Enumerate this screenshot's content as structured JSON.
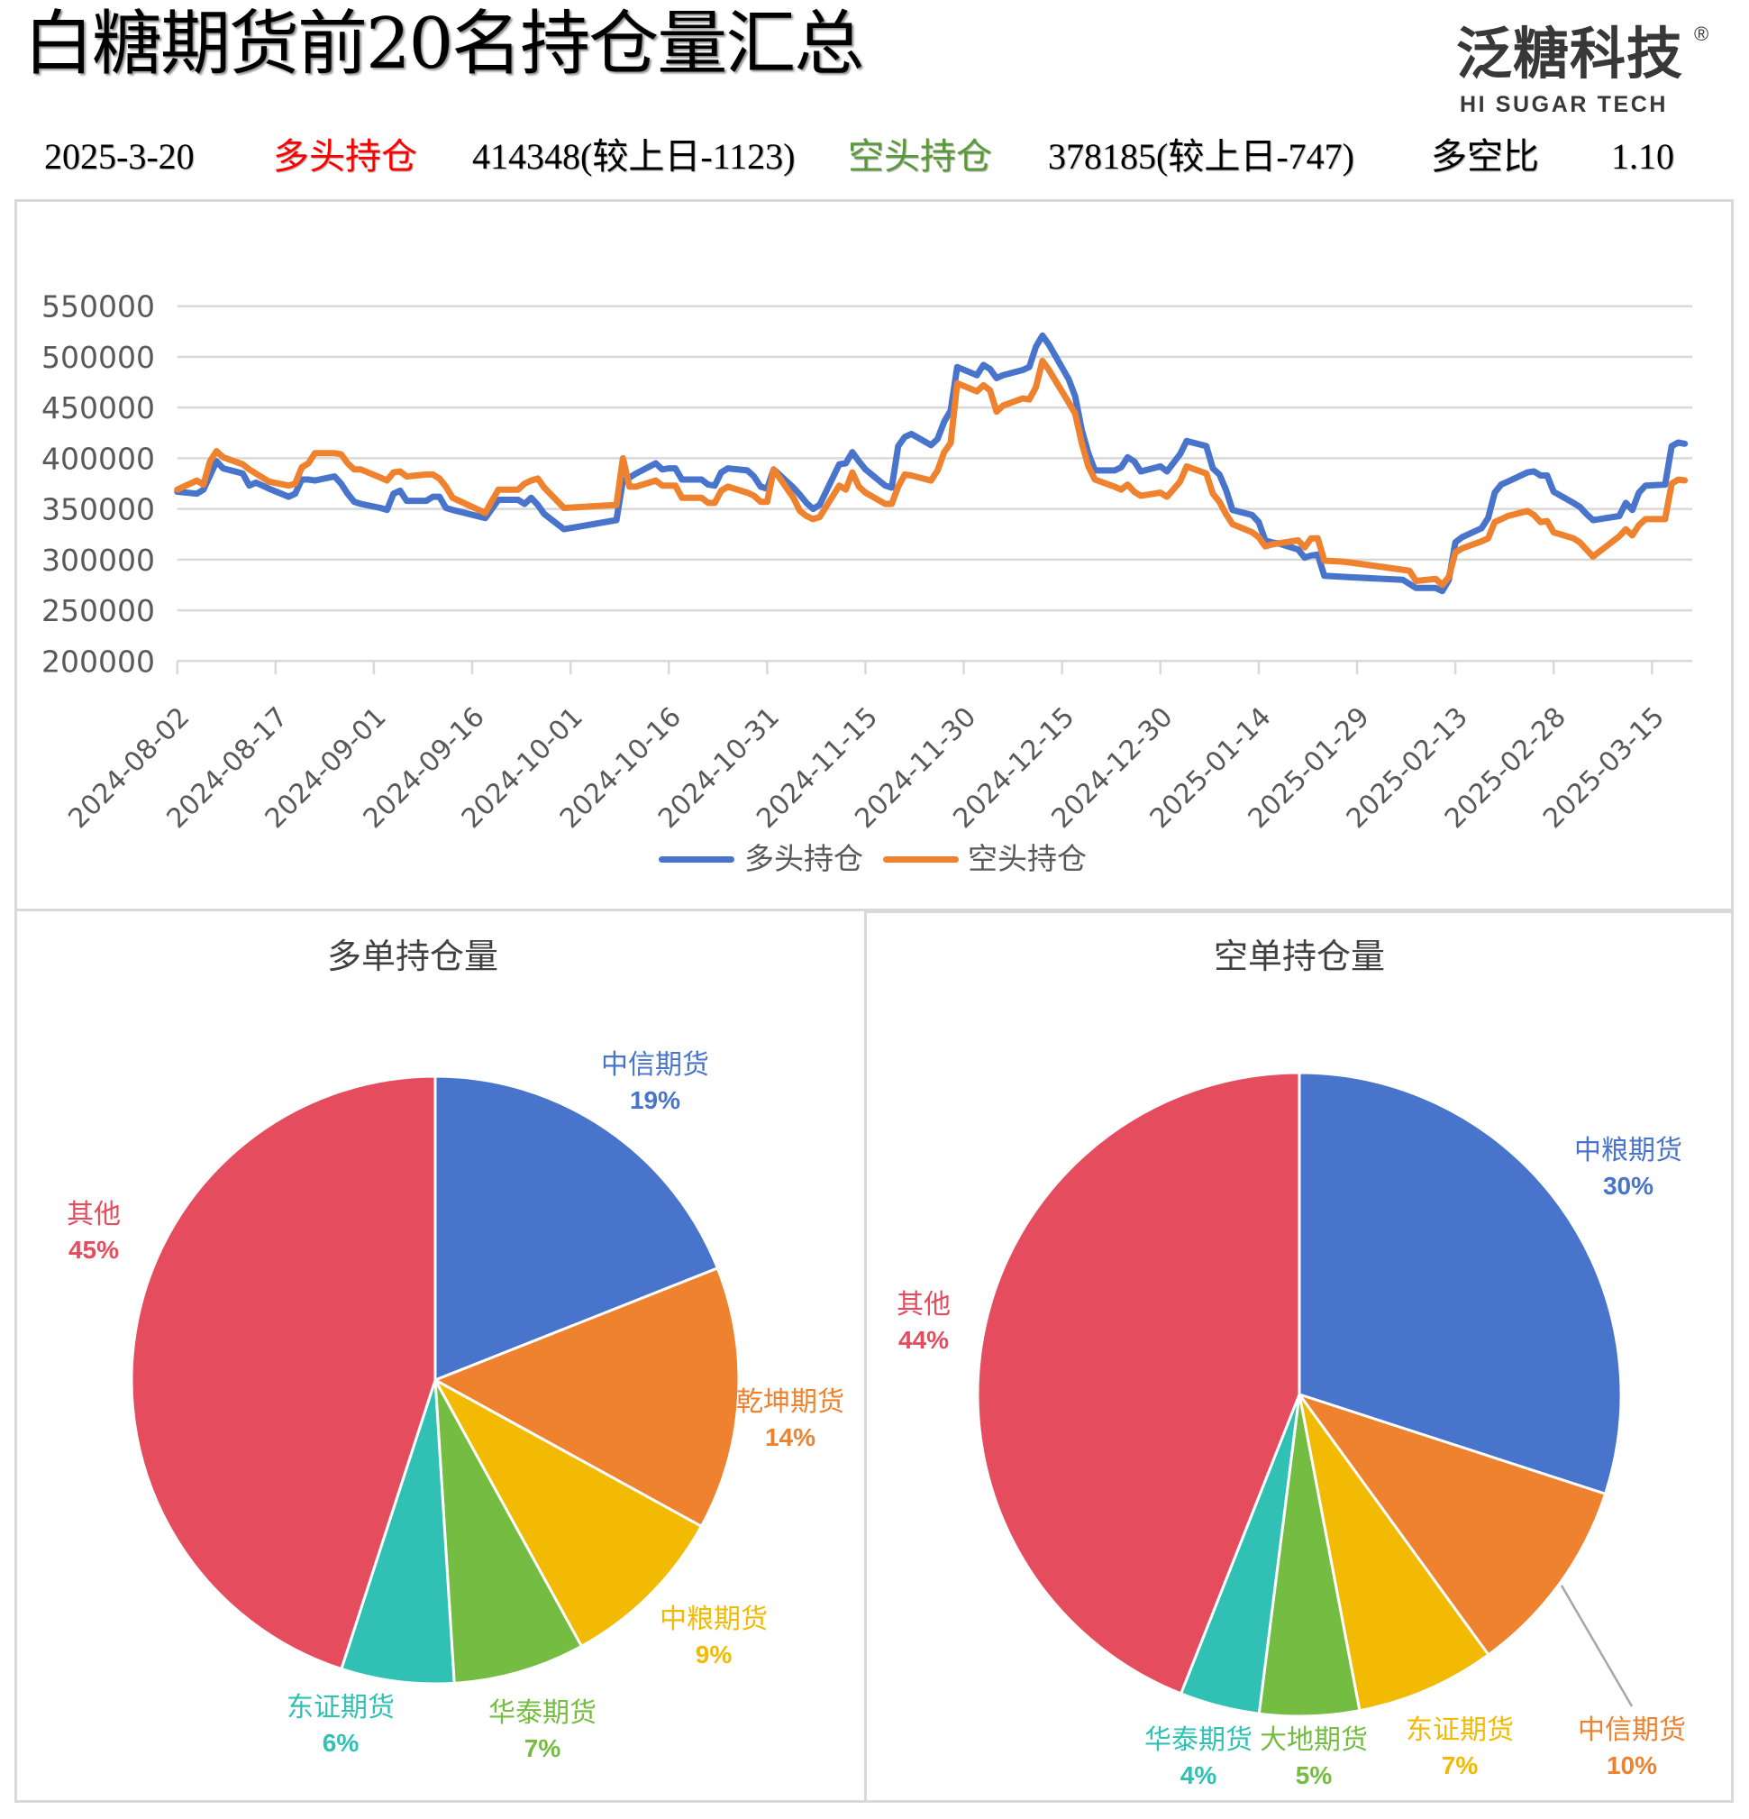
{
  "header": {
    "title": "白糖期货前20名持仓量汇总",
    "logo": {
      "name": "泛糖科技",
      "mark": "®",
      "tagline": "HI SUGAR TECH"
    }
  },
  "summary": {
    "date": "2025-3-20",
    "long_label": "多头持仓",
    "long_value": "414348(较上日-1123)",
    "short_label": "空头持仓",
    "short_value": "378185(较上日-747)",
    "ratio_label": "多空比",
    "ratio_value": "1.10",
    "colors": {
      "long_label": "#FF0000",
      "short_label": "#5B9A3A",
      "text": "#000000"
    }
  },
  "chart_data": [
    {
      "type": "line",
      "title": "",
      "xlabel": "",
      "ylabel": "",
      "x_axis_type": "date",
      "ylim": [
        200000,
        550000
      ],
      "yticks": [
        200000,
        250000,
        300000,
        350000,
        400000,
        450000,
        500000,
        550000
      ],
      "xtick_labels": [
        "2024-08-02",
        "2024-08-17",
        "2024-09-01",
        "2024-09-16",
        "2024-10-01",
        "2024-10-16",
        "2024-10-31",
        "2024-11-15",
        "2024-11-30",
        "2024-12-15",
        "2024-12-30",
        "2025-01-14",
        "2025-01-29",
        "2025-02-13",
        "2025-02-28",
        "2025-03-15"
      ],
      "xtick_interval_days": 15,
      "grid": true,
      "legend_position": "bottom",
      "x": [
        "2024-08-02",
        "2024-08-05",
        "2024-08-06",
        "2024-08-07",
        "2024-08-08",
        "2024-08-09",
        "2024-08-12",
        "2024-08-13",
        "2024-08-14",
        "2024-08-15",
        "2024-08-16",
        "2024-08-19",
        "2024-08-20",
        "2024-08-21",
        "2024-08-22",
        "2024-08-23",
        "2024-08-26",
        "2024-08-27",
        "2024-08-28",
        "2024-08-29",
        "2024-08-30",
        "2024-09-02",
        "2024-09-03",
        "2024-09-04",
        "2024-09-05",
        "2024-09-06",
        "2024-09-09",
        "2024-09-10",
        "2024-09-11",
        "2024-09-12",
        "2024-09-13",
        "2024-09-18",
        "2024-09-19",
        "2024-09-20",
        "2024-09-23",
        "2024-09-24",
        "2024-09-25",
        "2024-09-26",
        "2024-09-27",
        "2024-09-30",
        "2024-10-08",
        "2024-10-09",
        "2024-10-10",
        "2024-10-11",
        "2024-10-14",
        "2024-10-15",
        "2024-10-16",
        "2024-10-17",
        "2024-10-18",
        "2024-10-21",
        "2024-10-22",
        "2024-10-23",
        "2024-10-24",
        "2024-10-25",
        "2024-10-28",
        "2024-10-29",
        "2024-10-30",
        "2024-10-31",
        "2024-11-01",
        "2024-11-04",
        "2024-11-05",
        "2024-11-06",
        "2024-11-07",
        "2024-11-08",
        "2024-11-11",
        "2024-11-12",
        "2024-11-13",
        "2024-11-14",
        "2024-11-15",
        "2024-11-18",
        "2024-11-19",
        "2024-11-20",
        "2024-11-21",
        "2024-11-22",
        "2024-11-25",
        "2024-11-26",
        "2024-11-27",
        "2024-11-28",
        "2024-11-29",
        "2024-12-02",
        "2024-12-03",
        "2024-12-04",
        "2024-12-05",
        "2024-12-06",
        "2024-12-09",
        "2024-12-10",
        "2024-12-11",
        "2024-12-12",
        "2024-12-13",
        "2024-12-16",
        "2024-12-17",
        "2024-12-18",
        "2024-12-19",
        "2024-12-20",
        "2024-12-23",
        "2024-12-24",
        "2024-12-25",
        "2024-12-26",
        "2024-12-27",
        "2024-12-30",
        "2024-12-31",
        "2025-01-02",
        "2025-01-03",
        "2025-01-06",
        "2025-01-07",
        "2025-01-08",
        "2025-01-09",
        "2025-01-10",
        "2025-01-13",
        "2025-01-14",
        "2025-01-15",
        "2025-01-16",
        "2025-01-17",
        "2025-01-20",
        "2025-01-21",
        "2025-01-22",
        "2025-01-23",
        "2025-01-24",
        "2025-01-27",
        "2025-02-05",
        "2025-02-06",
        "2025-02-07",
        "2025-02-10",
        "2025-02-11",
        "2025-02-12",
        "2025-02-13",
        "2025-02-14",
        "2025-02-17",
        "2025-02-18",
        "2025-02-19",
        "2025-02-20",
        "2025-02-21",
        "2025-02-24",
        "2025-02-25",
        "2025-02-26",
        "2025-02-27",
        "2025-02-28",
        "2025-03-03",
        "2025-03-04",
        "2025-03-05",
        "2025-03-06",
        "2025-03-07",
        "2025-03-10",
        "2025-03-11",
        "2025-03-12",
        "2025-03-13",
        "2025-03-14",
        "2025-03-17",
        "2025-03-18",
        "2025-03-19",
        "2025-03-20"
      ],
      "series": [
        {
          "name": "多头持仓",
          "color": "#4874CB",
          "values": [
            367000,
            365000,
            369000,
            383000,
            397000,
            390000,
            385000,
            373000,
            376000,
            373000,
            370000,
            362000,
            365000,
            379000,
            379000,
            378000,
            382000,
            375000,
            365000,
            357000,
            355000,
            351000,
            349000,
            365000,
            368000,
            358000,
            358000,
            362000,
            362000,
            351000,
            349000,
            341000,
            350000,
            359000,
            359000,
            355000,
            361000,
            354000,
            345000,
            330000,
            339000,
            378000,
            381000,
            385000,
            395000,
            389000,
            390000,
            390000,
            379000,
            379000,
            374000,
            373000,
            386000,
            390000,
            388000,
            382000,
            372000,
            370000,
            389000,
            371000,
            364000,
            356000,
            350000,
            354000,
            394000,
            395000,
            406000,
            397000,
            389000,
            373000,
            371000,
            412000,
            421000,
            424000,
            413000,
            419000,
            436000,
            447000,
            490000,
            482000,
            492000,
            488000,
            479000,
            482000,
            487000,
            490000,
            510000,
            521000,
            512000,
            478000,
            461000,
            428000,
            405000,
            388000,
            388000,
            391000,
            401000,
            397000,
            387000,
            392000,
            387000,
            404000,
            417000,
            412000,
            390000,
            384000,
            369000,
            349000,
            344000,
            337000,
            319000,
            317000,
            316000,
            310000,
            302000,
            304000,
            305000,
            284000,
            283000,
            280000,
            276000,
            272000,
            272000,
            269000,
            280000,
            317000,
            322000,
            331000,
            341000,
            366000,
            374000,
            377000,
            386000,
            387000,
            383000,
            383000,
            367000,
            356000,
            352000,
            345000,
            339000,
            340000,
            343000,
            356000,
            349000,
            366000,
            373000,
            374000,
            412000,
            415471,
            414348
          ]
        },
        {
          "name": "空头持仓",
          "color": "#EE822F",
          "values": [
            369000,
            378000,
            374000,
            397000,
            407000,
            401000,
            394000,
            389000,
            385000,
            381000,
            377000,
            373000,
            375000,
            391000,
            395000,
            405000,
            405000,
            404000,
            395000,
            389000,
            389000,
            381000,
            378000,
            386000,
            387000,
            382000,
            384000,
            384000,
            380000,
            372000,
            361000,
            346000,
            358000,
            369000,
            369000,
            375000,
            378000,
            380000,
            371000,
            351000,
            354000,
            400000,
            372000,
            372000,
            378000,
            373000,
            373000,
            373000,
            361000,
            361000,
            356000,
            356000,
            368000,
            372000,
            366000,
            363000,
            357000,
            357000,
            389000,
            361000,
            348000,
            343000,
            340000,
            342000,
            373000,
            369000,
            386000,
            372000,
            366000,
            355000,
            355000,
            372000,
            384000,
            383000,
            378000,
            388000,
            406000,
            415000,
            474000,
            466000,
            472000,
            467000,
            446000,
            452000,
            459000,
            458000,
            470000,
            496000,
            487000,
            455000,
            444000,
            415000,
            392000,
            379000,
            372000,
            369000,
            374000,
            367000,
            363000,
            366000,
            362000,
            377000,
            392000,
            385000,
            365000,
            357000,
            345000,
            335000,
            327000,
            322000,
            313000,
            315000,
            316000,
            319000,
            312000,
            321000,
            321000,
            299000,
            298000,
            290000,
            289000,
            279000,
            281000,
            275000,
            283000,
            307000,
            311000,
            318000,
            321000,
            337000,
            340000,
            343000,
            348000,
            344000,
            337000,
            338000,
            327000,
            321000,
            317000,
            310000,
            303000,
            308000,
            323000,
            330000,
            324000,
            334000,
            340000,
            340000,
            375000,
            378932,
            378185
          ]
        }
      ]
    },
    {
      "type": "pie",
      "title": "多单持仓量",
      "categories": [
        "中信期货",
        "乾坤期货",
        "中粮期货",
        "华泰期货",
        "东证期货",
        "其他"
      ],
      "values": [
        19,
        14,
        9,
        7,
        6,
        45
      ],
      "labels": [
        "19%",
        "14%",
        "9%",
        "7%",
        "6%",
        "45%"
      ],
      "colors": [
        "#4874CB",
        "#EE822F",
        "#F2BA02",
        "#75BD42",
        "#30C0B4",
        "#E54D5F"
      ],
      "start_angle": 0,
      "direction": "clockwise"
    },
    {
      "type": "pie",
      "title": "空单持仓量",
      "categories": [
        "中粮期货",
        "中信期货",
        "东证期货",
        "大地期货",
        "华泰期货",
        "其他"
      ],
      "values": [
        30,
        10,
        7,
        5,
        4,
        44
      ],
      "labels": [
        "30%",
        "10%",
        "7%",
        "5%",
        "4%",
        "44%"
      ],
      "colors": [
        "#4874CB",
        "#EE822F",
        "#F2BA02",
        "#75BD42",
        "#30C0B4",
        "#E54D5F"
      ],
      "start_angle": 0,
      "direction": "clockwise"
    }
  ]
}
